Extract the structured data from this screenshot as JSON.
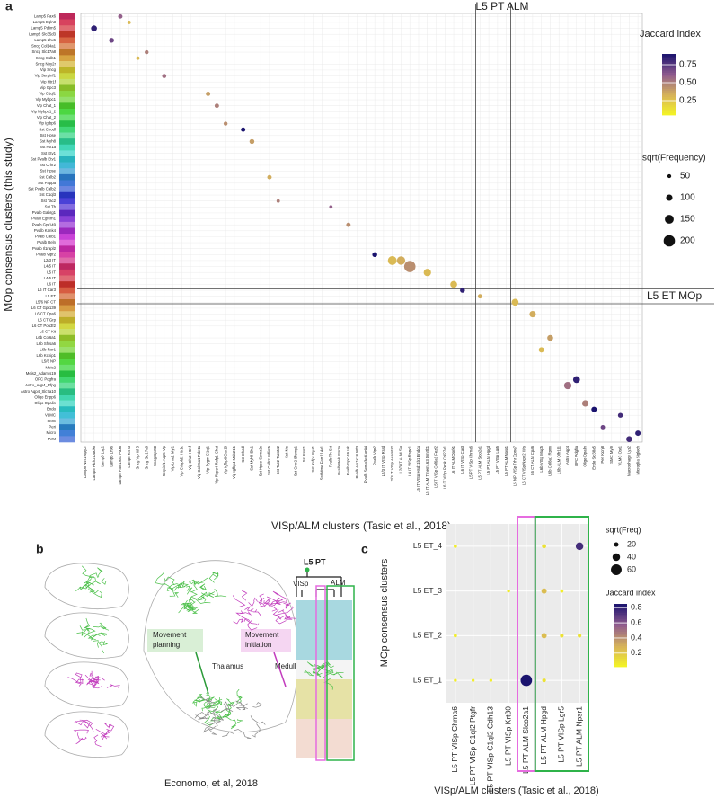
{
  "panel_labels": [
    "a",
    "b",
    "c"
  ],
  "chart_data": [
    {
      "type": "dotmatrix",
      "x_label": "VISp/ALM clusters (Tasic et al., 2018)",
      "y_label": "MOp consensus clusters (this study)",
      "x_categories": [
        "Lamp5 Ntn1 Npy2r",
        "Lamp5 Plch2 Dock5",
        "Lamp5 Lsp1",
        "Lamp5 Lhx6",
        "Lamp5 Fam19a1 Pax6",
        "Lamp5 Krt73",
        "Sncg Vip Itih5",
        "Sncg Slc17a8",
        "Sncg Gpr50",
        "Serpinf1 Aqp5 Vip",
        "Vip Lmo1 Myl1",
        "Vip Crispld2 Htr2c",
        "Vip Chat Htr1f",
        "Vip Col15a1 Pde1a",
        "Vip Pygm C1ql1",
        "Vip Rspo4 Rxfp1 Chat",
        "Vip Igfbp6 Car10",
        "Vip Igfbp4 Mab21l1",
        "Sst Chodl",
        "Sst Myh8 Etv1",
        "Sst Hpse Sema3c",
        "Sst Calb2 Pdlim5",
        "Sst Tac2 Tacstd2",
        "Sst Nts",
        "Sst Crhr2 Efemp1",
        "Sst Esm1",
        "Sst Rxfp1 Eya1",
        "Sst Mme Fam114a1",
        "Pvalb Th Sst",
        "Pvalb Reln Itm2a",
        "Pvalb Gpr149 Islr",
        "Pvalb Akr1c18 Ntf3",
        "Pvalb Sema3e Kank4",
        "Pvalb Vipr2",
        "L2/3 IT VISp Rrad",
        "L2/3 IT VISp Adamts2",
        "L2/3 IT ALM Sla",
        "L4 IT VISp Rspo1",
        "L5 IT VISp Hsd11b1 Endou",
        "L5 IT ALM Tmem163 Dmrtb1",
        "L5 IT VISp Col6a1 Fezf2",
        "L6 IT VISp Penk Col27a1",
        "L6 IT ALM Oprk1",
        "L6 IT VISp Car3",
        "L5 PT VISp Chrna6",
        "L5 PT ALM Slco2a1",
        "L5 PT ALM Hpgd",
        "L5 PT VISp Lgr5",
        "L5 PT ALM Npsr1",
        "L5 NP VISp Trhr Cpne7",
        "L6 CT VISp Nxph2 Wls",
        "L6 CT ALM Cpa6",
        "L6b VISp Mup5",
        "L6b Col8a1 Rprm",
        "L6b ALM Olfr111",
        "Astro Aqp4",
        "OPC Pdgfra",
        "Oligo Opalin",
        "Endo Slc38a5",
        "Peri Kcnj8",
        "SMC Myl9",
        "VLMC Osr1",
        "Macrophage Lyz2",
        "Microglia Siglech"
      ],
      "y_categories": [
        "Lamp5 Pax6",
        "Lamp5 Egln3",
        "Lamp5 Pdlim5",
        "Lamp5 Slc35d3",
        "Lamp5 Lhx6",
        "Sncg Col14a1",
        "Sncg Slc17a8",
        "Sncg Calb1",
        "Sncg Npy2r",
        "Vip Sncg",
        "Vip Serpinf1",
        "Vip Htr1f",
        "Vip Gpc3",
        "Vip C1ql1",
        "Vip Mybpc1",
        "Vip Chat_1",
        "Vip Mybpc1_2",
        "Vip Chat_2",
        "Vip Igfbp6",
        "Sst Chodl",
        "Sst Hpse",
        "Sst Myh8",
        "Sst Htr1a",
        "Sst Etv1",
        "Sst Pvalb Etv1",
        "Sst Crhr2",
        "Sst Hpse",
        "Sst Calb2",
        "Sst Pappa",
        "Sst Pvalb Calb2",
        "Sst C1ql3",
        "Sst Tac2",
        "Sst Th",
        "Pvalb Gabrg1",
        "Pvalb Egfem1",
        "Pvalb Gpr149",
        "Pvalb Kank4",
        "Pvalb Calb1",
        "Pvalb Reln",
        "Pvalb Il1rapl2",
        "Pvalb Vipr2",
        "L2/3 IT",
        "L4/5 IT",
        "L5 IT",
        "L4/5 IT",
        "L6 IT",
        "L6 IT Car3",
        "L5 ET",
        "L5/6 NP CT",
        "L6 CT Gpr139",
        "L6 CT Cpa6",
        "L6 CT Grp",
        "L6 CT Pou3f2",
        "L6 CT Kit",
        "L6b Col6a1",
        "L6b Shisa6",
        "L6b Ror1",
        "L6b Kcnip1",
        "L5/6 NP",
        "Meis2",
        "Meis2_Adamts19",
        "OPC Pdgfra",
        "Astro_Aqp4_Rfpg",
        "Astro Aqp4_Slc7a10",
        "Oligo Enpp6",
        "Oligo Opalin",
        "Endo",
        "VLMC",
        "SMC",
        "Peri",
        "Micro",
        "PVM"
      ],
      "points": [
        {
          "y": "Lamp5 Pax6",
          "x": "Lamp5 Fam19a1 Pax6",
          "jaccard": 0.6,
          "size": 60
        },
        {
          "y": "Lamp5 Egln3",
          "x": "Lamp5 Krt73",
          "jaccard": 0.3,
          "size": 40
        },
        {
          "y": "Lamp5 Pdlim5",
          "x": "Lamp5 Plch2 Dock5",
          "jaccard": 0.85,
          "size": 90
        },
        {
          "y": "Lamp5 Lhx6",
          "x": "Lamp5 Lhx6",
          "jaccard": 0.7,
          "size": 70
        },
        {
          "y": "Sncg Slc17a8",
          "x": "Sncg Slc17a8",
          "jaccard": 0.5,
          "size": 50
        },
        {
          "y": "Sncg Calb1",
          "x": "Sncg Vip Itih5",
          "jaccard": 0.3,
          "size": 40
        },
        {
          "y": "Vip Serpinf1",
          "x": "Serpinf1 Aqp5 Vip",
          "jaccard": 0.55,
          "size": 55
        },
        {
          "y": "Vip C1ql1",
          "x": "Vip Pygm C1ql1",
          "jaccard": 0.4,
          "size": 60
        },
        {
          "y": "Vip Chat_1",
          "x": "Vip Rspo4 Rxfp1 Chat",
          "jaccard": 0.5,
          "size": 60
        },
        {
          "y": "Vip Igfbp6",
          "x": "Vip Igfbp6 Car10",
          "jaccard": 0.45,
          "size": 50
        },
        {
          "y": "Sst Chodl",
          "x": "Sst Chodl",
          "jaccard": 0.9,
          "size": 60
        },
        {
          "y": "Sst Myh8",
          "x": "Sst Myh8 Etv1",
          "jaccard": 0.4,
          "size": 70
        },
        {
          "y": "Sst Calb2",
          "x": "Sst Calb2 Pdlim5",
          "jaccard": 0.35,
          "size": 60
        },
        {
          "y": "Sst Tac2",
          "x": "Sst Tac2 Tacstd2",
          "jaccard": 0.5,
          "size": 40
        },
        {
          "y": "Sst Th",
          "x": "Pvalb Th Sst",
          "jaccard": 0.6,
          "size": 40
        },
        {
          "y": "Pvalb Gpr149",
          "x": "Pvalb Gpr149 Islr",
          "jaccard": 0.45,
          "size": 60
        },
        {
          "y": "Pvalb Vipr2",
          "x": "Pvalb Vipr2",
          "jaccard": 0.9,
          "size": 70
        },
        {
          "y": "L2/3 IT",
          "x": "L2/3 IT VISp Adamts2",
          "jaccard": 0.3,
          "size": 150
        },
        {
          "y": "L2/3 IT",
          "x": "L2/3 IT ALM Sla",
          "jaccard": 0.35,
          "size": 140
        },
        {
          "y": "L4/5 IT",
          "x": "L4 IT VISp Rspo1",
          "jaccard": 0.45,
          "size": 200
        },
        {
          "y": "L5 IT",
          "x": "L5 IT ALM Tmem163 Dmrtb1",
          "jaccard": 0.3,
          "size": 120
        },
        {
          "y": "L6 IT",
          "x": "L6 IT ALM Oprk1",
          "jaccard": 0.3,
          "size": 110
        },
        {
          "y": "L6 IT Car3",
          "x": "L6 IT VISp Car3",
          "jaccard": 0.85,
          "size": 70
        },
        {
          "y": "L5 ET",
          "x": "L5 PT ALM Slco2a1",
          "jaccard": 0.35,
          "size": 60
        },
        {
          "y": "L5/6 NP CT",
          "x": "L5 NP VISp Trhr Cpne7",
          "jaccard": 0.3,
          "size": 110
        },
        {
          "y": "L6 CT Cpa6",
          "x": "L6 CT ALM Cpa6",
          "jaccard": 0.35,
          "size": 100
        },
        {
          "y": "L6b Col6a1",
          "x": "L6b Col8a1 Rprm",
          "jaccard": 0.4,
          "size": 90
        },
        {
          "y": "L6b Ror1",
          "x": "L6b VISp Mup5",
          "jaccard": 0.3,
          "size": 80
        },
        {
          "y": "Astro_Aqp4_Rfpg",
          "x": "Astro Aqp4",
          "jaccard": 0.55,
          "size": 120
        },
        {
          "y": "OPC Pdgfra",
          "x": "OPC Pdgfra",
          "jaccard": 0.85,
          "size": 110
        },
        {
          "y": "Oligo Opalin",
          "x": "Oligo Opalin",
          "jaccard": 0.5,
          "size": 100
        },
        {
          "y": "Endo",
          "x": "Endo Slc38a5",
          "jaccard": 0.9,
          "size": 80
        },
        {
          "y": "VLMC",
          "x": "VLMC Osr1",
          "jaccard": 0.8,
          "size": 70
        },
        {
          "y": "Peri",
          "x": "Peri Kcnj8",
          "jaccard": 0.7,
          "size": 60
        },
        {
          "y": "Micro",
          "x": "Microglia Siglech",
          "jaccard": 0.85,
          "size": 80
        },
        {
          "y": "PVM",
          "x": "Macrophage Lyz2",
          "jaccard": 0.8,
          "size": 90
        }
      ],
      "annotations": [
        {
          "text": "L5 PT ALM",
          "x": [
            "L5 PT ALM Slco2a1",
            "L5 PT ALM Npsr1"
          ]
        },
        {
          "text": "L5 ET MOp",
          "y": [
            "L5 ET"
          ]
        }
      ],
      "colormap": [
        "#f5f524",
        "#d6b25a",
        "#8f5b8e",
        "#1a136e"
      ],
      "color_legend_title": "Jaccard index",
      "colorlim": [
        0.05,
        0.9
      ],
      "color_ticks": [
        0.25,
        {
          "value": 0.5,
          "label": "0.50"
        },
        0.75
      ],
      "size_legend_title": "sqrt(Frequency)",
      "sizelim": [
        0,
        200
      ],
      "size_ticks": [
        50,
        100,
        150,
        200
      ]
    },
    {
      "type": "dotmatrix",
      "x_label": "VISp/ALM clusters (Tasic et al., 2018)",
      "y_label": "MOp consensus clusters",
      "x_categories": [
        "L5 PT VISp Chrna6",
        "L5 PT VISp C1ql2 Ptgfr",
        "L5 PT VISp C1ql2 Cdh13",
        "L5 PT VISp Krt80",
        "L5 PT ALM Slco2a1",
        "L5 PT ALM Hpgd",
        "L5 PT VISp Lgr5",
        "L5 PT ALM Npsr1"
      ],
      "y_categories": [
        "L5 ET_4",
        "L5 ET_3",
        "L5 ET_2",
        "L5 ET_1"
      ],
      "points": [
        {
          "y": "L5 ET_4",
          "x": "L5 PT VISp Chrna6",
          "jaccard": 0.05,
          "size": 12
        },
        {
          "y": "L5 ET_4",
          "x": "L5 PT ALM Hpgd",
          "jaccard": 0.1,
          "size": 18
        },
        {
          "y": "L5 ET_4",
          "x": "L5 PT ALM Npsr1",
          "jaccard": 0.75,
          "size": 40
        },
        {
          "y": "L5 ET_3",
          "x": "L5 PT VISp Krt80",
          "jaccard": 0.05,
          "size": 10
        },
        {
          "y": "L5 ET_3",
          "x": "L5 PT ALM Hpgd",
          "jaccard": 0.25,
          "size": 25
        },
        {
          "y": "L5 ET_3",
          "x": "L5 PT VISp Lgr5",
          "jaccard": 0.05,
          "size": 12
        },
        {
          "y": "L5 ET_2",
          "x": "L5 PT VISp Chrna6",
          "jaccard": 0.05,
          "size": 12
        },
        {
          "y": "L5 ET_2",
          "x": "L5 PT ALM Hpgd",
          "jaccard": 0.25,
          "size": 25
        },
        {
          "y": "L5 ET_2",
          "x": "L5 PT VISp Lgr5",
          "jaccard": 0.1,
          "size": 15
        },
        {
          "y": "L5 ET_2",
          "x": "L5 PT ALM Npsr1",
          "jaccard": 0.1,
          "size": 15
        },
        {
          "y": "L5 ET_1",
          "x": "L5 PT VISp Chrna6",
          "jaccard": 0.05,
          "size": 10
        },
        {
          "y": "L5 ET_1",
          "x": "L5 PT VISp C1ql2 Ptgfr",
          "jaccard": 0.05,
          "size": 10
        },
        {
          "y": "L5 ET_1",
          "x": "L5 PT VISp C1ql2 Cdh13",
          "jaccard": 0.05,
          "size": 10
        },
        {
          "y": "L5 ET_1",
          "x": "L5 PT ALM Slco2a1",
          "jaccard": 0.85,
          "size": 65
        },
        {
          "y": "L5 ET_1",
          "x": "L5 PT ALM Hpgd",
          "jaccard": 0.1,
          "size": 15
        }
      ],
      "highlights": [
        {
          "x": [
            "L5 PT ALM Slco2a1"
          ],
          "color": "#e66ce0"
        },
        {
          "x": [
            "L5 PT ALM Hpgd",
            "L5 PT VISp Lgr5",
            "L5 PT ALM Npsr1"
          ],
          "color": "#2fb34a"
        }
      ],
      "colormap": [
        "#f5f524",
        "#d6b25a",
        "#8f5b8e",
        "#1a136e"
      ],
      "color_legend_title": "Jaccard index",
      "colorlim": [
        0.02,
        0.85
      ],
      "color_ticks": [
        0.2,
        0.4,
        0.6,
        0.8
      ],
      "size_legend_title": "sqrt(Freq)",
      "sizelim": [
        0,
        70
      ],
      "size_ticks": [
        20,
        40,
        60
      ]
    }
  ],
  "diagram": {
    "caption": "Economo, et al, 2018",
    "movement_planning": [
      "Movement",
      "planning"
    ],
    "thalamus": "Thalamus",
    "movement_initiation": [
      "Movement",
      "initiation"
    ],
    "medulla": "Medulla",
    "tree_root": "L5 PT",
    "tree_left": "VISp",
    "tree_right": "ALM"
  }
}
